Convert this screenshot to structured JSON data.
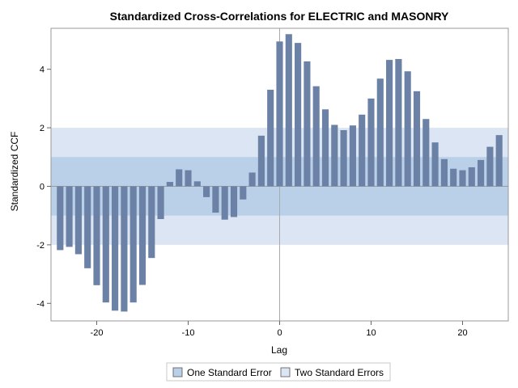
{
  "chart_data": {
    "type": "bar",
    "title": "Standardized Cross-Correlations for ELECTRIC and MASONRY",
    "xlabel": "Lag",
    "ylabel": "Standardized CCF",
    "xlim": [
      -25,
      25
    ],
    "ylim": [
      -4.6,
      5.4
    ],
    "xticks": [
      -20,
      -10,
      0,
      10,
      20
    ],
    "yticks": [
      -4,
      -2,
      0,
      2,
      4
    ],
    "lags": [
      -24,
      -23,
      -22,
      -21,
      -20,
      -19,
      -18,
      -17,
      -16,
      -15,
      -14,
      -13,
      -12,
      -11,
      -10,
      -9,
      -8,
      -7,
      -6,
      -5,
      -4,
      -3,
      -2,
      -1,
      0,
      1,
      2,
      3,
      4,
      5,
      6,
      7,
      8,
      9,
      10,
      11,
      12,
      13,
      14,
      15,
      16,
      17,
      18,
      19,
      20,
      21,
      22,
      23,
      24
    ],
    "values": [
      -2.18,
      -2.07,
      -2.32,
      -2.8,
      -3.38,
      -3.97,
      -4.25,
      -4.28,
      -3.97,
      -3.37,
      -2.45,
      -1.12,
      0.15,
      0.58,
      0.55,
      0.17,
      -0.37,
      -0.9,
      -1.14,
      -1.05,
      -0.45,
      0.47,
      1.73,
      3.3,
      4.95,
      5.2,
      4.9,
      4.27,
      3.42,
      2.63,
      2.1,
      1.92,
      2.08,
      2.45,
      3.0,
      3.68,
      4.32,
      4.35,
      3.93,
      3.25,
      2.3,
      1.5,
      0.93,
      0.6,
      0.55,
      0.65,
      0.9,
      1.35,
      1.75
    ],
    "bands": [
      {
        "name": "Two Standard Errors",
        "low": -2,
        "high": 2,
        "color": "#dbe5f3"
      },
      {
        "name": "One Standard Error",
        "low": -1,
        "high": 1,
        "color": "#bacfe8"
      }
    ],
    "bar_color": "#6b82a6",
    "legend": {
      "position": "bottom",
      "items": [
        {
          "label": "One Standard Error",
          "color": "#bacfe8"
        },
        {
          "label": "Two Standard Errors",
          "color": "#dbe5f3"
        }
      ]
    }
  }
}
